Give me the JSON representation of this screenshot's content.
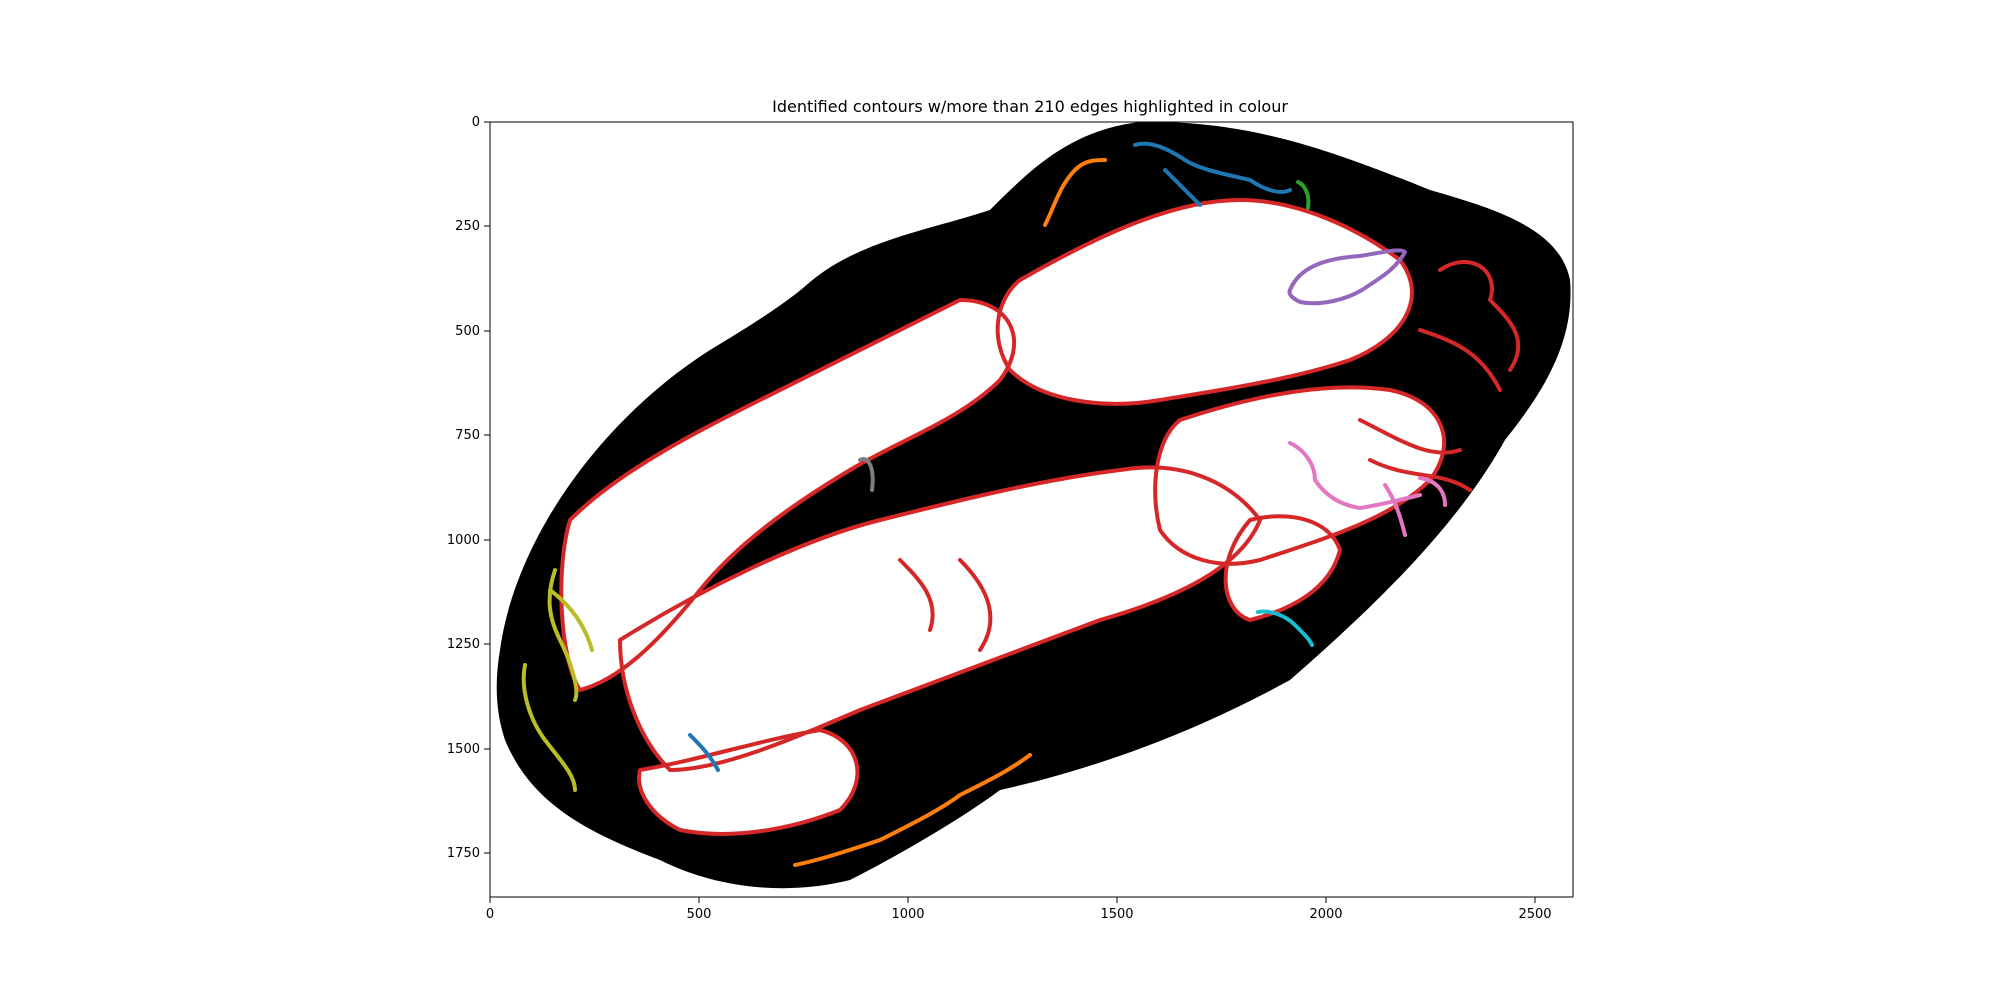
{
  "chart_data": {
    "type": "image",
    "title": "Identified contours w/more than 210 edges highlighted in colour",
    "x_ticks": [
      0,
      500,
      1000,
      1500,
      2000,
      2500
    ],
    "y_ticks": [
      0,
      250,
      500,
      750,
      1000,
      1250,
      1500,
      1750
    ],
    "xlim": [
      0,
      2590
    ],
    "ylim": [
      1850,
      0
    ],
    "y_inverted": true,
    "grid": false,
    "colors": {
      "background": "#ffffff",
      "tissue": "#000000",
      "contour_default": "#d62728",
      "highlight": [
        "#1f77b4",
        "#ff7f0e",
        "#2ca02c",
        "#9467bd",
        "#e377c2",
        "#7f7f7f",
        "#bcbd22",
        "#17becf"
      ]
    }
  }
}
